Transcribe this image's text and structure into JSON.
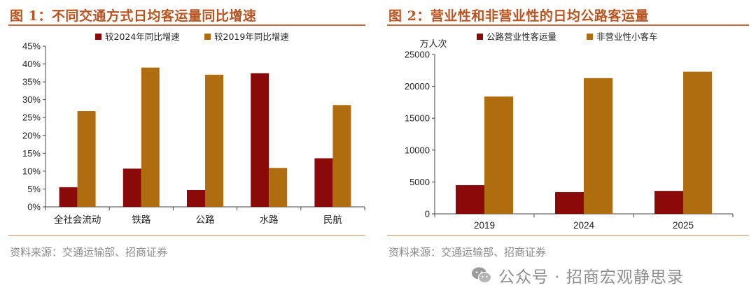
{
  "figure1": {
    "title": "图 1：不同交通方式日均客运量同比增速",
    "source": "资料来源：交通运输部、招商证券",
    "chart_data": {
      "type": "bar",
      "categories": [
        "全社会流动",
        "铁路",
        "公路",
        "水路",
        "民航"
      ],
      "series": [
        {
          "name": "较2024年同比增速",
          "values": [
            5.5,
            10.7,
            4.7,
            37.4,
            13.6
          ]
        },
        {
          "name": "较2019年同比增速",
          "values": [
            26.8,
            39.0,
            37.0,
            10.9,
            28.5
          ]
        }
      ],
      "ylim": [
        0,
        45
      ],
      "yticks": [
        0,
        5,
        10,
        15,
        20,
        25,
        30,
        35,
        40,
        45
      ],
      "ytick_labels": [
        "0%",
        "5%",
        "10%",
        "15%",
        "20%",
        "25%",
        "30%",
        "35%",
        "40%",
        "45%"
      ],
      "ylabel": "",
      "xlabel": "",
      "legend": "top"
    }
  },
  "figure2": {
    "title": "图 2：营业性和非营业性的日均公路客运量",
    "source": "资料来源：交通运输部、招商证券",
    "chart_data": {
      "type": "bar",
      "categories": [
        "2019",
        "2024",
        "2025"
      ],
      "series": [
        {
          "name": "公路营业性客运量",
          "values": [
            4500,
            3400,
            3600
          ]
        },
        {
          "name": "非营业性小客车",
          "values": [
            18400,
            21300,
            22300
          ]
        }
      ],
      "ylim": [
        0,
        25000
      ],
      "yticks": [
        0,
        5000,
        10000,
        15000,
        20000,
        25000
      ],
      "ytick_labels": [
        "0",
        "5000",
        "10000",
        "15000",
        "20000",
        "25000"
      ],
      "ylabel": "万人次",
      "xlabel": "",
      "legend": "top"
    }
  },
  "colors": {
    "series1": "#8a0a0a",
    "series2": "#b06d10",
    "title": "#b8541f",
    "axis": "#444444"
  },
  "watermark": {
    "icon": "wechat-icon",
    "text": "公众号 · 招商宏观静思录"
  }
}
